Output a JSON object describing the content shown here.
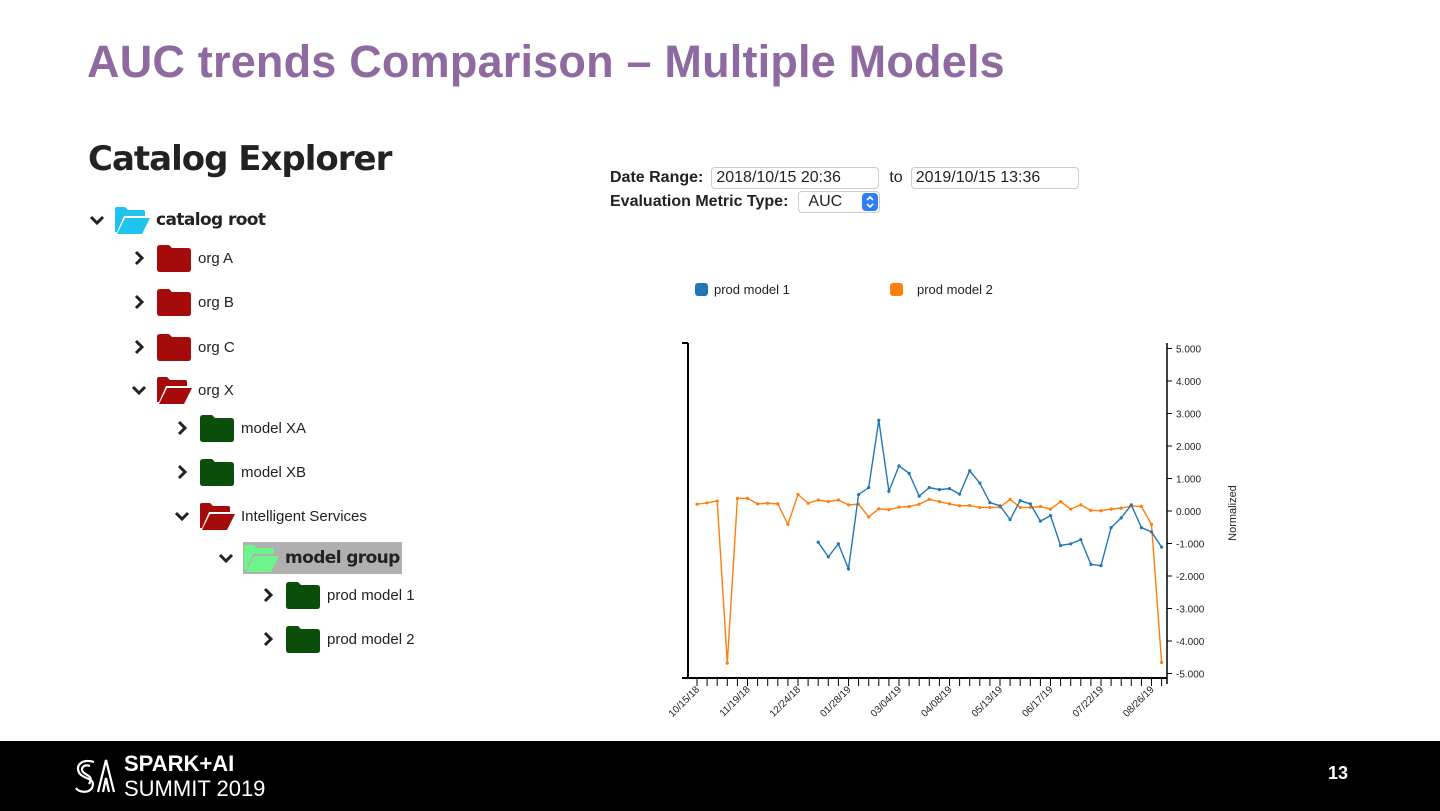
{
  "slide": {
    "title": "AUC trends Comparison – Multiple Models",
    "page_number": "13",
    "footer_logo": {
      "line1": "SPARK+AI",
      "line2": "SUMMIT 2019"
    }
  },
  "catalog": {
    "heading": "Catalog Explorer",
    "items": [
      {
        "label": "catalog root",
        "expanded": true,
        "icon": "folder-open-icon",
        "color": "#1ec3f0"
      },
      {
        "label": "org A",
        "expanded": false,
        "icon": "folder-icon",
        "color": "#a50b0b"
      },
      {
        "label": "org B",
        "expanded": false,
        "icon": "folder-icon",
        "color": "#a50b0b"
      },
      {
        "label": "org C",
        "expanded": false,
        "icon": "folder-icon",
        "color": "#a50b0b"
      },
      {
        "label": "org X",
        "expanded": true,
        "icon": "folder-open-icon",
        "color": "#a50b0b"
      },
      {
        "label": "model XA",
        "expanded": false,
        "icon": "folder-icon",
        "color": "#0b4d0b"
      },
      {
        "label": "model XB",
        "expanded": false,
        "icon": "folder-icon",
        "color": "#0b4d0b"
      },
      {
        "label": "Intelligent Services",
        "expanded": true,
        "icon": "folder-open-icon",
        "color": "#a50b0b"
      },
      {
        "label": "model group",
        "expanded": true,
        "selected": true,
        "icon": "folder-open-icon",
        "color": "#6df58c"
      },
      {
        "label": "prod model 1",
        "expanded": false,
        "icon": "folder-icon",
        "color": "#0b4d0b"
      },
      {
        "label": "prod model 2",
        "expanded": false,
        "icon": "folder-icon",
        "color": "#0b4d0b"
      }
    ]
  },
  "filters": {
    "date_range_label": "Date Range:",
    "from": "2018/10/15 20:36",
    "to_label": "to",
    "to": "2019/10/15 13:36",
    "metric_label": "Evaluation Metric Type:",
    "metric_value": "AUC"
  },
  "chart_data": {
    "type": "line",
    "title": "",
    "xlabel": "",
    "ylabel": "Normalized",
    "ylim": [
      -5,
      5
    ],
    "yticks": [
      "5.000",
      "4.000",
      "3.000",
      "2.000",
      "1.000",
      "0.000",
      "-1.000",
      "-2.000",
      "-3.000",
      "-4.000",
      "-5.000"
    ],
    "x_weeks": 47,
    "xtick_labels": [
      "10/15/18",
      "11/19/18",
      "12/24/18",
      "01/28/19",
      "03/04/19",
      "04/08/19",
      "05/13/19",
      "06/17/19",
      "07/22/19",
      "08/26/19"
    ],
    "xtick_every": 5,
    "legend_position": "top",
    "series": [
      {
        "name": "prod model 1",
        "color": "#1f77b4",
        "start_week": 12,
        "values": [
          -0.9,
          -1.35,
          -0.95,
          -1.72,
          0.57,
          0.78,
          2.85,
          0.67,
          1.45,
          1.22,
          0.52,
          0.78,
          0.72,
          0.75,
          0.58,
          1.3,
          0.92,
          0.32,
          0.22,
          -0.2,
          0.38,
          0.28,
          -0.25,
          -0.08,
          -1.0,
          -0.95,
          -0.82,
          -1.58,
          -1.62,
          -0.45,
          -0.15,
          0.25,
          -0.45,
          -0.58,
          -1.05
        ]
      },
      {
        "name": "prod model 2",
        "color": "#ff7f0e",
        "start_week": 0,
        "values": [
          0.27,
          0.31,
          0.37,
          -4.62,
          0.45,
          0.45,
          0.28,
          0.3,
          0.28,
          -0.35,
          0.57,
          0.3,
          0.4,
          0.35,
          0.4,
          0.25,
          0.27,
          -0.12,
          0.13,
          0.1,
          0.18,
          0.2,
          0.27,
          0.42,
          0.35,
          0.28,
          0.22,
          0.23,
          0.17,
          0.17,
          0.18,
          0.42,
          0.17,
          0.17,
          0.2,
          0.12,
          0.35,
          0.12,
          0.25,
          0.08,
          0.07,
          0.12,
          0.15,
          0.22,
          0.2,
          -0.35,
          -4.6
        ]
      }
    ]
  }
}
